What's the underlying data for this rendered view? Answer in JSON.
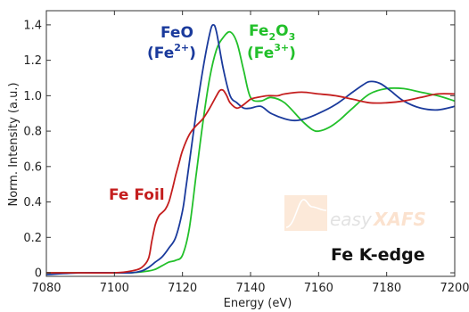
{
  "chart_data": {
    "type": "line",
    "xlabel": "Energy (eV)",
    "ylabel": "Norm. Intensity (a.u.)",
    "xlim": [
      7080,
      7200
    ],
    "ylim": [
      -0.02,
      1.48
    ],
    "x_ticks": [
      7080,
      7100,
      7120,
      7140,
      7160,
      7180,
      7200
    ],
    "y_ticks": [
      0,
      0.2,
      0.4,
      0.6,
      0.8,
      1.0,
      1.2,
      1.4
    ],
    "y_tick_labels": [
      "0",
      "0.2",
      "0.4",
      "0.6",
      "0.8",
      "1.0",
      "1.2",
      "1.4"
    ],
    "grid": false,
    "legend": "none",
    "series": [
      {
        "name": "Fe Foil",
        "color": "#c41e1e",
        "x": [
          7080,
          7090,
          7100,
          7105,
          7108,
          7110,
          7111,
          7112,
          7113,
          7114,
          7115,
          7116,
          7117,
          7118,
          7119,
          7120,
          7122,
          7124,
          7126,
          7128,
          7130,
          7131,
          7132,
          7133,
          7134,
          7136,
          7138,
          7140,
          7142,
          7145,
          7148,
          7150,
          7155,
          7160,
          7165,
          7170,
          7175,
          7180,
          7185,
          7190,
          7195,
          7200
        ],
        "y": [
          0.0,
          0.0,
          0.0,
          0.01,
          0.03,
          0.08,
          0.18,
          0.27,
          0.32,
          0.34,
          0.36,
          0.4,
          0.47,
          0.55,
          0.62,
          0.69,
          0.78,
          0.83,
          0.87,
          0.93,
          1.0,
          1.03,
          1.03,
          1.0,
          0.96,
          0.93,
          0.95,
          0.98,
          0.99,
          1.0,
          1.0,
          1.01,
          1.02,
          1.01,
          1.0,
          0.98,
          0.96,
          0.96,
          0.97,
          0.99,
          1.01,
          1.01
        ]
      },
      {
        "name": "FeO (Fe2+)",
        "color": "#1a3a9c",
        "x": [
          7080,
          7090,
          7100,
          7105,
          7108,
          7110,
          7112,
          7114,
          7116,
          7118,
          7120,
          7121,
          7122,
          7124,
          7126,
          7128,
          7129,
          7130,
          7132,
          7134,
          7136,
          7138,
          7140,
          7143,
          7146,
          7150,
          7153,
          7156,
          7160,
          7165,
          7170,
          7173,
          7175,
          7178,
          7181,
          7185,
          7190,
          7195,
          7200
        ],
        "y": [
          -0.01,
          0.0,
          0.0,
          0.0,
          0.01,
          0.03,
          0.06,
          0.09,
          0.14,
          0.2,
          0.35,
          0.48,
          0.62,
          0.9,
          1.15,
          1.35,
          1.4,
          1.36,
          1.15,
          1.0,
          0.96,
          0.93,
          0.93,
          0.94,
          0.9,
          0.87,
          0.86,
          0.87,
          0.9,
          0.95,
          1.02,
          1.06,
          1.08,
          1.07,
          1.03,
          0.97,
          0.93,
          0.92,
          0.94
        ]
      },
      {
        "name": "Fe2O3 (Fe3+)",
        "color": "#22c02a",
        "x": [
          7080,
          7090,
          7100,
          7105,
          7110,
          7112,
          7114,
          7116,
          7118,
          7120,
          7122,
          7124,
          7126,
          7128,
          7130,
          7132,
          7134,
          7136,
          7138,
          7140,
          7143,
          7146,
          7150,
          7155,
          7158,
          7160,
          7163,
          7166,
          7170,
          7175,
          7180,
          7185,
          7190,
          7195,
          7200
        ],
        "y": [
          0.0,
          0.0,
          0.0,
          0.0,
          0.01,
          0.02,
          0.04,
          0.06,
          0.07,
          0.1,
          0.25,
          0.55,
          0.85,
          1.1,
          1.26,
          1.33,
          1.36,
          1.3,
          1.14,
          0.99,
          0.97,
          0.99,
          0.96,
          0.86,
          0.81,
          0.8,
          0.82,
          0.86,
          0.93,
          1.01,
          1.04,
          1.04,
          1.02,
          1.0,
          0.97
        ]
      }
    ],
    "annotations": [
      {
        "text": "FeO",
        "color": "#1a3a9c"
      },
      {
        "text": "(Fe",
        "sup": "2+",
        "close": ")",
        "color": "#1a3a9c"
      },
      {
        "text": "Fe",
        "sub": "2",
        "text2": "O",
        "sub2": "3",
        "color": "#22c02a"
      },
      {
        "text": "(Fe",
        "sup": "3+",
        "close": ")",
        "color": "#22c02a"
      },
      {
        "text": "Fe Foil",
        "color": "#c41e1e"
      },
      {
        "text": "Fe K-edge",
        "color": "#111111"
      }
    ],
    "watermark": {
      "text_a": "easy",
      "text_b": "XAFS"
    }
  }
}
